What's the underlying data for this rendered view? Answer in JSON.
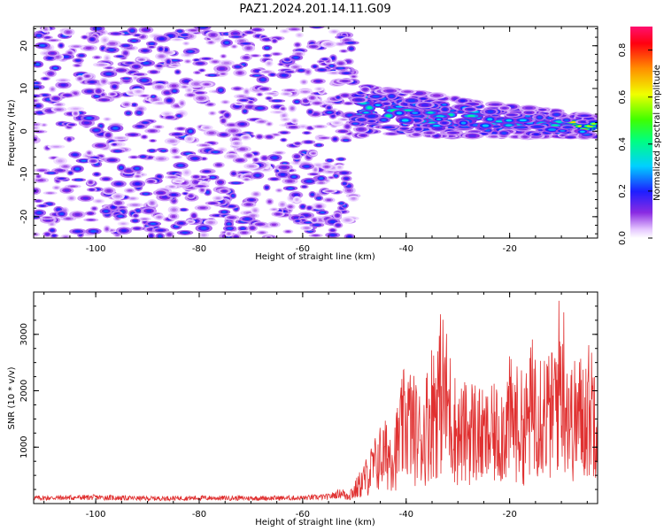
{
  "title": "PAZ1.2024.201.14.11.G09",
  "spectrogram": {
    "xlabel": "Height of straight line (km)",
    "ylabel": "Frequency (Hz)",
    "xlim": [
      -112,
      -3
    ],
    "ylim": [
      -25,
      24.5
    ],
    "xticks": [
      "-100",
      "-80",
      "-60",
      "-40",
      "-20"
    ],
    "yticks": [
      "20",
      "10",
      "0",
      "-10",
      "-20"
    ],
    "colorbar": {
      "label": "Normalized spectral amplitude",
      "range": [
        0,
        0.9
      ],
      "ticks": [
        "0.0",
        "0.2",
        "0.4",
        "0.6",
        "0.8"
      ],
      "colormap": "gist_rainbow-like (violet → blue → cyan → green → yellow → red)"
    }
  },
  "snr": {
    "xlabel": "Height of straight line (km)",
    "ylabel": "SNR (10 * v/v)",
    "xlim": [
      -112,
      -3
    ],
    "ylim": [
      0,
      3750
    ],
    "xticks": [
      "-100",
      "-80",
      "-60",
      "-40",
      "-20"
    ],
    "yticks": [
      "1000",
      "2000",
      "3000"
    ],
    "line_color": "#e03030"
  },
  "chart_data": [
    {
      "type": "heatmap",
      "title": "PAZ1.2024.201.14.11.G09",
      "xlabel": "Height of straight line (km)",
      "ylabel": "Frequency (Hz)",
      "xlim": [
        -112,
        -3
      ],
      "ylim": [
        -25,
        24.5
      ],
      "colorbar_label": "Normalized spectral amplitude",
      "colorbar_range": [
        0,
        0.9
      ],
      "description_values": {
        "noise_region_x": [
          -112,
          -50
        ],
        "noise_amplitude": [
          0.05,
          0.25
        ],
        "signal_region_x": [
          -50,
          -3
        ],
        "signal_center_frequency_hz": [
          5,
          1
        ],
        "signal_peak_amplitude": 0.7,
        "signal_peak_x": -5
      }
    },
    {
      "type": "line",
      "xlabel": "Height of straight line (km)",
      "ylabel": "SNR (10 * v/v)",
      "xlim": [
        -112,
        -3
      ],
      "ylim": [
        0,
        3750
      ],
      "series": [
        {
          "x": [
            -110,
            -100,
            -90,
            -80,
            -70,
            -60,
            -55,
            -52,
            -50,
            -48,
            -45,
            -42,
            -40,
            -37,
            -35,
            -33,
            -30,
            -27,
            -25,
            -22,
            -20,
            -17,
            -15,
            -12,
            -10,
            -8,
            -5,
            -3
          ],
          "values": [
            100,
            110,
            90,
            100,
            95,
            100,
            120,
            200,
            350,
            700,
            1300,
            1500,
            2400,
            1800,
            2700,
            3200,
            1900,
            2100,
            1800,
            2000,
            2400,
            2100,
            3000,
            2400,
            3700,
            2300,
            2600,
            2900
          ]
        }
      ]
    }
  ]
}
